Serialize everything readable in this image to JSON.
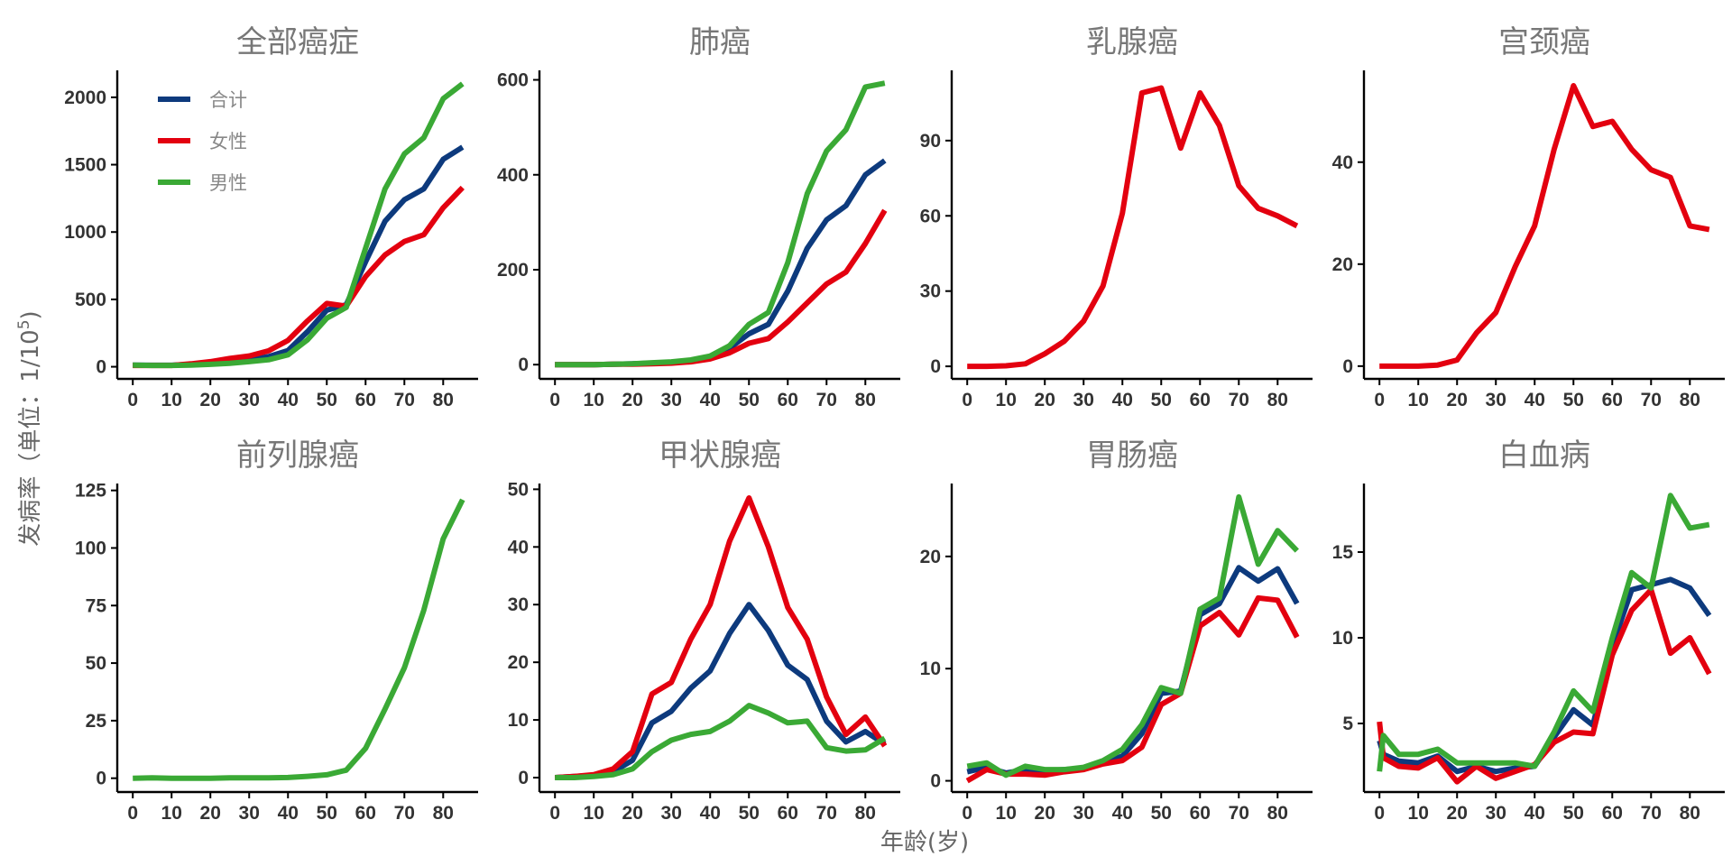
{
  "figure": {
    "xlabel": "年龄(岁)",
    "ylabel_prefix": "发病率（单位：",
    "ylabel_unit_base": "1/10",
    "ylabel_unit_exp": "5",
    "ylabel_suffix": ")"
  },
  "legend": {
    "position": "top-left of first panel",
    "items": [
      {
        "label": "合计",
        "color": "#0d3a7d"
      },
      {
        "label": "女性",
        "color": "#e3000f"
      },
      {
        "label": "男性",
        "color": "#3aa935"
      }
    ]
  },
  "chart_data": [
    {
      "type": "line",
      "title": "全部癌症",
      "x": [
        0,
        5,
        10,
        15,
        20,
        25,
        30,
        35,
        40,
        45,
        50,
        55,
        60,
        65,
        70,
        75,
        80,
        85
      ],
      "xticks": [
        "0",
        "10",
        "20",
        "30",
        "40",
        "50",
        "60",
        "70",
        "80"
      ],
      "xlim": [
        -4,
        89
      ],
      "ylim": [
        -90,
        2200
      ],
      "yticks": [
        0,
        500,
        1000,
        1500,
        2000
      ],
      "series": [
        {
          "name": "合计",
          "color": "#0d3a7d",
          "values": [
            12,
            11,
            11,
            18,
            25,
            38,
            52,
            75,
            120,
            260,
            420,
            460,
            780,
            1080,
            1240,
            1320,
            1540,
            1630
          ]
        },
        {
          "name": "女性",
          "color": "#e3000f",
          "values": [
            10,
            10,
            10,
            22,
            38,
            62,
            80,
            118,
            195,
            340,
            470,
            450,
            670,
            830,
            930,
            980,
            1180,
            1330
          ]
        },
        {
          "name": "男性",
          "color": "#3aa935",
          "values": [
            12,
            10,
            10,
            12,
            18,
            25,
            38,
            52,
            88,
            200,
            360,
            440,
            880,
            1320,
            1580,
            1700,
            1990,
            2100
          ]
        }
      ]
    },
    {
      "type": "line",
      "title": "肺癌",
      "x": [
        0,
        5,
        10,
        15,
        20,
        25,
        30,
        35,
        40,
        45,
        50,
        55,
        60,
        65,
        70,
        75,
        80,
        85
      ],
      "xticks": [
        "0",
        "10",
        "20",
        "30",
        "40",
        "50",
        "60",
        "70",
        "80"
      ],
      "xlim": [
        -4,
        89
      ],
      "ylim": [
        -30,
        620
      ],
      "yticks": [
        0,
        200,
        400,
        600
      ],
      "series": [
        {
          "name": "合计",
          "color": "#0d3a7d",
          "values": [
            0,
            0,
            0,
            1,
            2,
            3,
            5,
            8,
            15,
            35,
            65,
            85,
            155,
            245,
            305,
            335,
            400,
            430
          ]
        },
        {
          "name": "女性",
          "color": "#e3000f",
          "values": [
            0,
            0,
            0,
            1,
            1,
            2,
            3,
            6,
            12,
            25,
            45,
            55,
            90,
            130,
            170,
            195,
            255,
            325
          ]
        },
        {
          "name": "男性",
          "color": "#3aa935",
          "values": [
            0,
            0,
            0,
            1,
            2,
            4,
            6,
            10,
            18,
            40,
            85,
            110,
            215,
            360,
            450,
            495,
            585,
            593
          ]
        }
      ]
    },
    {
      "type": "line",
      "title": "乳腺癌",
      "x": [
        0,
        5,
        10,
        15,
        20,
        25,
        30,
        35,
        40,
        45,
        50,
        55,
        60,
        65,
        70,
        75,
        80,
        85
      ],
      "xticks": [
        "0",
        "10",
        "20",
        "30",
        "40",
        "50",
        "60",
        "70",
        "80"
      ],
      "xlim": [
        -4,
        89
      ],
      "ylim": [
        -5,
        118
      ],
      "yticks": [
        0,
        30,
        60,
        90
      ],
      "series": [
        {
          "name": "女性",
          "color": "#e3000f",
          "values": [
            0,
            0,
            0.2,
            1,
            5,
            10,
            18,
            32,
            61,
            109,
            111,
            87,
            109,
            96,
            72,
            63,
            60,
            56
          ]
        }
      ]
    },
    {
      "type": "line",
      "title": "宫颈癌",
      "x": [
        0,
        5,
        10,
        15,
        20,
        25,
        30,
        35,
        40,
        45,
        50,
        55,
        60,
        65,
        70,
        75,
        80,
        85
      ],
      "xticks": [
        "0",
        "10",
        "20",
        "30",
        "40",
        "50",
        "60",
        "70",
        "80"
      ],
      "xlim": [
        -4,
        89
      ],
      "ylim": [
        -2.5,
        58
      ],
      "yticks": [
        0,
        20,
        40
      ],
      "series": [
        {
          "name": "女性",
          "color": "#e3000f",
          "values": [
            0,
            0,
            0,
            0.2,
            1.2,
            6.5,
            10.5,
            19.5,
            27.5,
            42.5,
            55,
            47,
            48,
            42.5,
            38.5,
            37,
            27.5,
            26.8
          ]
        }
      ]
    },
    {
      "type": "line",
      "title": "前列腺癌",
      "x": [
        0,
        5,
        10,
        15,
        20,
        25,
        30,
        35,
        40,
        45,
        50,
        55,
        60,
        65,
        70,
        75,
        80,
        85
      ],
      "xticks": [
        "0",
        "10",
        "20",
        "30",
        "40",
        "50",
        "60",
        "70",
        "80"
      ],
      "xlim": [
        -4,
        89
      ],
      "ylim": [
        -6,
        128
      ],
      "yticks": [
        0,
        25,
        50,
        75,
        100,
        125
      ],
      "series": [
        {
          "name": "男性",
          "color": "#3aa935",
          "values": [
            0,
            0.2,
            0,
            0,
            0,
            0.2,
            0.2,
            0.2,
            0.3,
            0.8,
            1.5,
            3.5,
            13,
            30,
            48,
            73,
            104,
            121
          ]
        }
      ]
    },
    {
      "type": "line",
      "title": "甲状腺癌",
      "x": [
        0,
        5,
        10,
        15,
        20,
        25,
        30,
        35,
        40,
        45,
        50,
        55,
        60,
        65,
        70,
        75,
        80,
        85
      ],
      "xticks": [
        "0",
        "10",
        "20",
        "30",
        "40",
        "50",
        "60",
        "70",
        "80"
      ],
      "xlim": [
        -4,
        89
      ],
      "ylim": [
        -2.5,
        51
      ],
      "yticks": [
        0,
        10,
        20,
        30,
        40,
        50
      ],
      "series": [
        {
          "name": "合计",
          "color": "#0d3a7d",
          "values": [
            0,
            0.2,
            0.4,
            1,
            3,
            9.5,
            11.5,
            15.5,
            18.5,
            25,
            30,
            25.5,
            19.5,
            17,
            9.8,
            6.2,
            8,
            5.8
          ]
        },
        {
          "name": "女性",
          "color": "#e3000f",
          "values": [
            0,
            0.2,
            0.5,
            1.5,
            4.5,
            14.5,
            16.5,
            24,
            30,
            41,
            48.5,
            40,
            29.5,
            24,
            14,
            7.5,
            10.5,
            5.5
          ]
        },
        {
          "name": "男性",
          "color": "#3aa935",
          "values": [
            0,
            0,
            0.2,
            0.5,
            1.5,
            4.5,
            6.5,
            7.5,
            8,
            9.8,
            12.5,
            11.2,
            9.5,
            9.8,
            5.2,
            4.6,
            4.8,
            6.8
          ]
        }
      ]
    },
    {
      "type": "line",
      "title": "胃肠癌",
      "x": [
        0,
        5,
        10,
        15,
        20,
        25,
        30,
        35,
        40,
        45,
        50,
        55,
        60,
        65,
        70,
        75,
        80,
        85
      ],
      "xticks": [
        "0",
        "10",
        "20",
        "30",
        "40",
        "50",
        "60",
        "70",
        "80"
      ],
      "xlim": [
        -4,
        89
      ],
      "ylim": [
        -1,
        26.5
      ],
      "yticks": [
        0,
        10,
        20
      ],
      "series": [
        {
          "name": "合计",
          "color": "#0d3a7d",
          "values": [
            0.8,
            1.2,
            0.7,
            1,
            0.9,
            1,
            1.1,
            1.6,
            2.2,
            4.2,
            7.8,
            8,
            14.8,
            15.8,
            19,
            17.8,
            18.9,
            15.8
          ]
        },
        {
          "name": "女性",
          "color": "#e3000f",
          "values": [
            0,
            1,
            0.6,
            0.6,
            0.5,
            0.8,
            1,
            1.5,
            1.8,
            3,
            6.8,
            7.8,
            13.8,
            15,
            13,
            16.3,
            16.1,
            12.8
          ]
        },
        {
          "name": "男性",
          "color": "#3aa935",
          "values": [
            1.3,
            1.6,
            0.5,
            1.3,
            1,
            1,
            1.2,
            1.8,
            2.8,
            5,
            8.3,
            7.8,
            15.3,
            16.3,
            25.3,
            19.3,
            22.3,
            20.5
          ]
        }
      ]
    },
    {
      "type": "line",
      "title": "白血病",
      "x": [
        0,
        1,
        5,
        10,
        15,
        20,
        25,
        30,
        35,
        40,
        45,
        50,
        55,
        60,
        65,
        70,
        75,
        80,
        85
      ],
      "xticks": [
        "0",
        "10",
        "20",
        "30",
        "40",
        "50",
        "60",
        "70",
        "80"
      ],
      "xlim": [
        -4,
        89
      ],
      "ylim": [
        1,
        19
      ],
      "yticks": [
        5,
        10,
        15
      ],
      "series": [
        {
          "name": "合计",
          "color": "#0d3a7d",
          "values": [
            4,
            3.2,
            2.8,
            2.7,
            3.1,
            2.2,
            2.5,
            2.2,
            2.4,
            2.5,
            4.2,
            5.8,
            4.9,
            9.5,
            12.8,
            13.1,
            13.4,
            12.9,
            11.3
          ]
        },
        {
          "name": "女性",
          "color": "#e3000f",
          "values": [
            5.1,
            3,
            2.5,
            2.4,
            3,
            1.6,
            2.5,
            1.8,
            2.2,
            2.6,
            3.9,
            4.5,
            4.4,
            9,
            11.6,
            12.8,
            9.1,
            10,
            7.9
          ]
        },
        {
          "name": "男性",
          "color": "#3aa935",
          "values": [
            2.2,
            4.3,
            3.2,
            3.2,
            3.5,
            2.7,
            2.7,
            2.7,
            2.7,
            2.5,
            4.5,
            6.9,
            5.7,
            10,
            13.8,
            12.9,
            18.3,
            16.4,
            16.6
          ]
        }
      ]
    }
  ]
}
